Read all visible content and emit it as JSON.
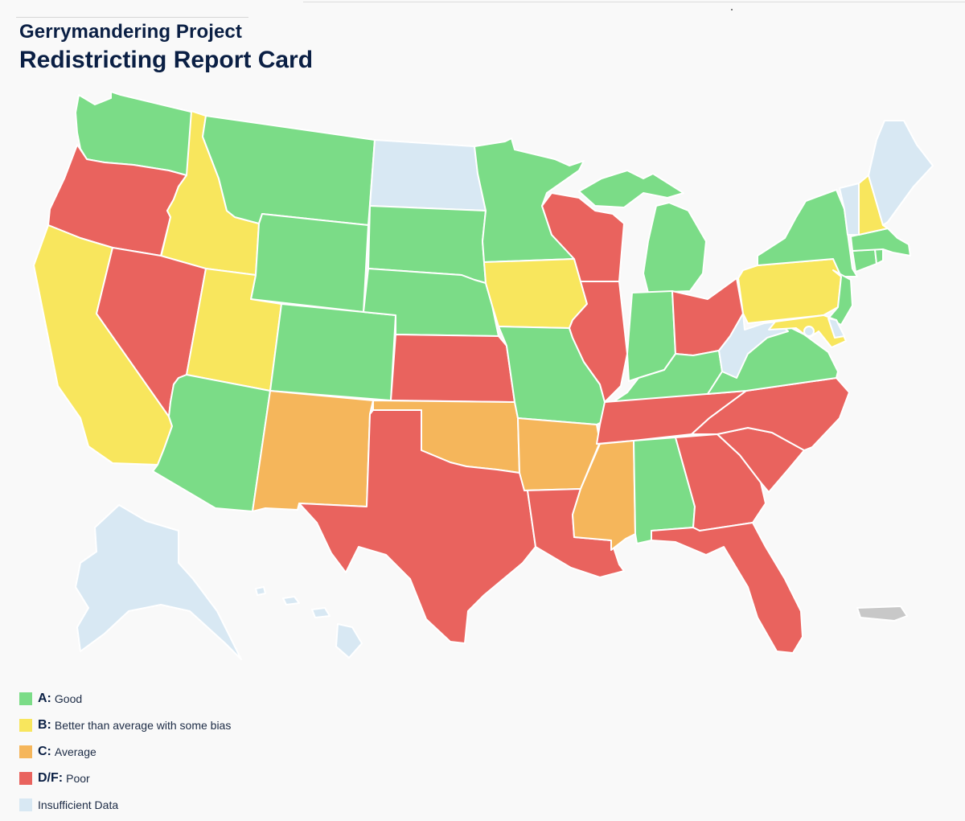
{
  "header": {
    "subtitle": "Gerrymandering Project",
    "title": "Redistricting Report Card"
  },
  "colors": {
    "A": "#7bdc87",
    "B": "#f8e65d",
    "C": "#f5b65b",
    "DF": "#e9635e",
    "insufficient": "#d8e8f3",
    "territory": "#c8c8c8",
    "background": "#f9f9f9",
    "text": "#0a1f44"
  },
  "legend": [
    {
      "grade": "A:",
      "label": "Good",
      "color": "#7bdc87"
    },
    {
      "grade": "B:",
      "label": "Better than average with some bias",
      "color": "#f8e65d"
    },
    {
      "grade": "C:",
      "label": "Average",
      "color": "#f5b65b"
    },
    {
      "grade": "D/F:",
      "label": "Poor",
      "color": "#e9635e"
    },
    {
      "grade": "",
      "label": "Insufficient Data",
      "color": "#d8e8f3"
    }
  ],
  "grades": {
    "WA": "A",
    "OR": "DF",
    "CA": "B",
    "ID": "B",
    "NV": "DF",
    "MT": "A",
    "WY": "A",
    "UT": "B",
    "AZ": "A",
    "CO": "A",
    "NM": "C",
    "ND": "insufficient",
    "SD": "A",
    "NE": "A",
    "KS": "DF",
    "OK": "C",
    "TX": "DF",
    "MN": "A",
    "IA": "B",
    "MO": "A",
    "AR": "C",
    "LA": "DF",
    "WI": "DF",
    "IL": "DF",
    "MI": "A",
    "IN": "A",
    "OH": "DF",
    "KY": "A",
    "TN": "DF",
    "MS": "C",
    "AL": "A",
    "GA": "DF",
    "FL": "DF",
    "SC": "DF",
    "NC": "DF",
    "VA": "A",
    "WV": "insufficient",
    "PA": "B",
    "NY": "A",
    "VT": "insufficient",
    "NH": "B",
    "ME": "insufficient",
    "MA": "A",
    "CT": "A",
    "RI": "A",
    "NJ": "A",
    "DE": "insufficient",
    "MD": "B",
    "DC": "insufficient",
    "AK": "insufficient",
    "HI": "insufficient",
    "PR": "territory"
  }
}
